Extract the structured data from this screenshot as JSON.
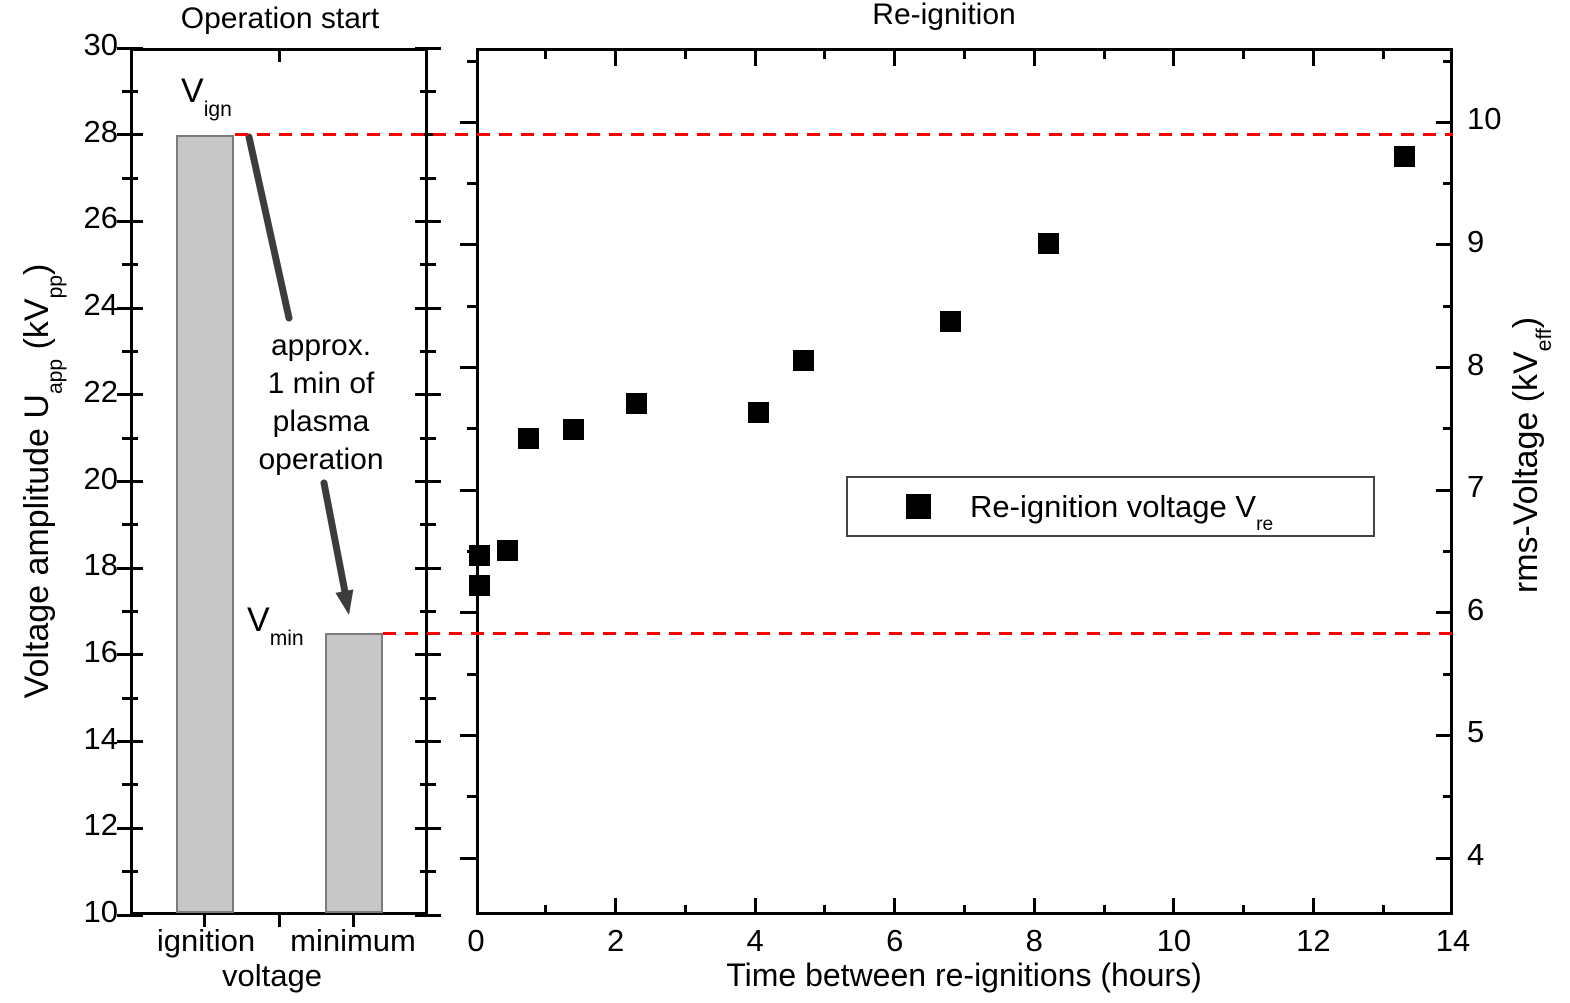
{
  "titles": {
    "left_panel": "Operation start",
    "right_panel": "Re-ignition"
  },
  "axes": {
    "left_y": {
      "label_parts": [
        {
          "t": "Voltage amplitude  U"
        },
        {
          "t": "app",
          "sub": true
        },
        {
          "t": " (kV"
        },
        {
          "t": "pp",
          "sub": true
        },
        {
          "t": ")"
        }
      ],
      "ticks": [
        10,
        12,
        14,
        16,
        18,
        20,
        22,
        24,
        26,
        28,
        30
      ],
      "range": [
        10,
        30
      ]
    },
    "right_y": {
      "label_parts": [
        {
          "t": "rms-Voltage (kV"
        },
        {
          "t": "eff",
          "sub": true
        },
        {
          "t": ")"
        }
      ],
      "ticks": [
        4,
        5,
        6,
        7,
        8,
        9,
        10
      ]
    },
    "bottom_x_right": {
      "label": "Time between re-ignitions (hours)",
      "ticks": [
        0,
        2,
        4,
        6,
        8,
        10,
        12,
        14
      ],
      "range": [
        0,
        14
      ]
    },
    "bottom_x_left": {
      "label": "voltage",
      "categories": [
        "ignition",
        "minimum"
      ]
    }
  },
  "legend": {
    "label_parts": [
      {
        "t": "Re-ignition voltage V"
      },
      {
        "t": "re",
        "sub": true
      }
    ]
  },
  "annotations": {
    "v_ign_parts": [
      {
        "t": "V"
      },
      {
        "t": "ign",
        "sub": true
      }
    ],
    "v_min_parts": [
      {
        "t": "V"
      },
      {
        "t": "min",
        "sub": true
      }
    ],
    "note_lines": [
      "approx.",
      "1 min of",
      "plasma",
      "operation"
    ]
  },
  "colors": {
    "reference_line": "#fe0000",
    "bar_fill": "#c7c7c7",
    "bar_edge": "#7c7c7c",
    "marker": "#000000",
    "annotation_arrow": "#3c3c3c"
  },
  "chart_data": [
    {
      "type": "bar",
      "title": "Operation start",
      "categories": [
        "ignition",
        "minimum"
      ],
      "xlabel": "voltage",
      "ylabel": "Voltage amplitude U_app (kV_pp)",
      "values": [
        28,
        16.5
      ],
      "ylim": [
        10,
        30
      ],
      "ytick_major_step": 2,
      "ytick_minor_step": 1,
      "bar_labels": [
        "V_ign",
        "V_min"
      ],
      "note": "approx. 1 min of plasma operation"
    },
    {
      "type": "scatter",
      "title": "Re-ignition",
      "xlabel": "Time between re-ignitions (hours)",
      "ylabel_right": "rms-Voltage (kV_eff)",
      "xlim": [
        0,
        14
      ],
      "xtick_major_step": 2,
      "xtick_minor_step": 1,
      "ylim_right_kveff": [
        3.51,
        10.6
      ],
      "yticks_right": [
        4,
        5,
        6,
        7,
        8,
        9,
        10
      ],
      "legend_entry": "Re-ignition voltage V_re",
      "legend_position": "center-right",
      "marker": "filled-square",
      "series": [
        {
          "name": "Re-ignition voltage V_re",
          "x_hours": [
            0.05,
            0.05,
            0.45,
            0.75,
            1.4,
            2.3,
            4.05,
            4.7,
            6.8,
            8.2,
            13.3
          ],
          "y_kvpp": [
            18.3,
            17.6,
            18.4,
            21.0,
            21.2,
            21.8,
            21.6,
            22.8,
            23.7,
            25.5,
            27.5
          ],
          "y_kveff": [
            6.47,
            6.22,
            6.51,
            7.42,
            7.5,
            7.71,
            7.64,
            8.06,
            8.38,
            9.02,
            9.72
          ]
        }
      ],
      "reference_lines_kvpp": [
        28,
        16.5
      ],
      "grid": false
    }
  ]
}
